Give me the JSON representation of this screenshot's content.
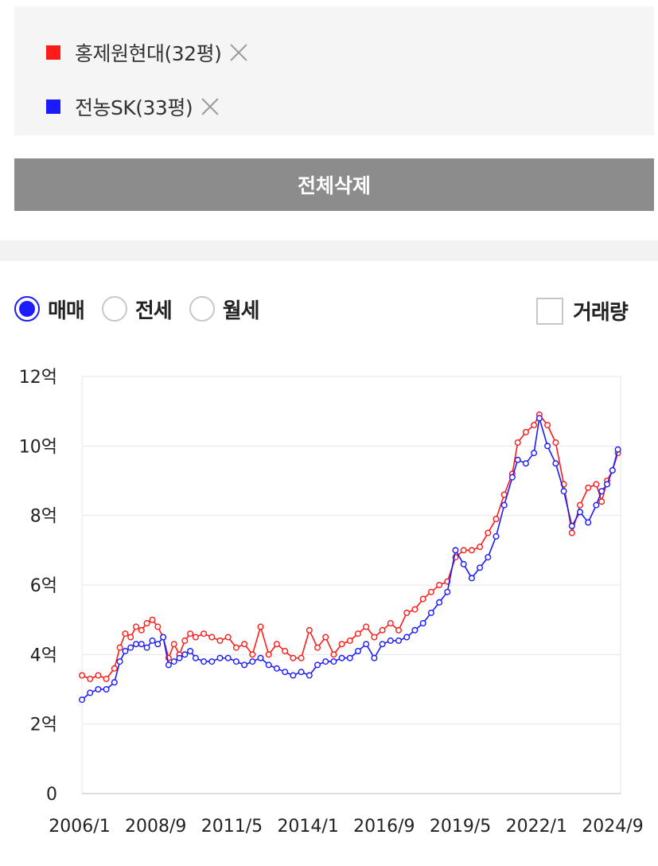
{
  "comparison": {
    "items": [
      {
        "label": "홍제원현대(32평)",
        "color": "#ff1a1a"
      },
      {
        "label": "전농SK(33평)",
        "color": "#1a1aff"
      }
    ]
  },
  "toolbar": {
    "clear_all_label": "전체삭제"
  },
  "trade_types": {
    "options": [
      "매매",
      "전세",
      "월세"
    ],
    "selected": "매매"
  },
  "volume_toggle": {
    "label": "거래량",
    "checked": false
  },
  "chart_data": {
    "type": "line",
    "y_tick_labels": [
      "0",
      "2억",
      "4억",
      "6억",
      "8억",
      "10억",
      "12억"
    ],
    "x_tick_labels": [
      "2006/1",
      "2008/9",
      "2011/5",
      "2014/1",
      "2016/9",
      "2019/5",
      "2022/1",
      "2024/9"
    ],
    "ylim": [
      0,
      12
    ],
    "y_unit": "억",
    "x_range_years": [
      2006.0,
      2025.9
    ],
    "grid": true,
    "markers": "hollow-circle",
    "series": [
      {
        "name": "홍제원현대(32평)",
        "color": "#ff1a1a",
        "points": [
          [
            2006.0,
            3.4
          ],
          [
            2006.3,
            3.3
          ],
          [
            2006.6,
            3.4
          ],
          [
            2006.9,
            3.3
          ],
          [
            2007.2,
            3.6
          ],
          [
            2007.4,
            4.2
          ],
          [
            2007.6,
            4.6
          ],
          [
            2007.8,
            4.5
          ],
          [
            2008.0,
            4.8
          ],
          [
            2008.2,
            4.7
          ],
          [
            2008.4,
            4.9
          ],
          [
            2008.6,
            5.0
          ],
          [
            2008.8,
            4.8
          ],
          [
            2009.0,
            4.5
          ],
          [
            2009.2,
            3.9
          ],
          [
            2009.4,
            4.3
          ],
          [
            2009.6,
            4.0
          ],
          [
            2009.8,
            4.4
          ],
          [
            2010.0,
            4.6
          ],
          [
            2010.2,
            4.5
          ],
          [
            2010.5,
            4.6
          ],
          [
            2010.8,
            4.5
          ],
          [
            2011.1,
            4.4
          ],
          [
            2011.4,
            4.5
          ],
          [
            2011.7,
            4.2
          ],
          [
            2012.0,
            4.3
          ],
          [
            2012.3,
            4.0
          ],
          [
            2012.6,
            4.8
          ],
          [
            2012.9,
            4.0
          ],
          [
            2013.2,
            4.3
          ],
          [
            2013.5,
            4.1
          ],
          [
            2013.8,
            3.9
          ],
          [
            2014.1,
            3.9
          ],
          [
            2014.4,
            4.7
          ],
          [
            2014.7,
            4.2
          ],
          [
            2015.0,
            4.5
          ],
          [
            2015.3,
            4.0
          ],
          [
            2015.6,
            4.3
          ],
          [
            2015.9,
            4.4
          ],
          [
            2016.2,
            4.6
          ],
          [
            2016.5,
            4.8
          ],
          [
            2016.8,
            4.5
          ],
          [
            2017.1,
            4.7
          ],
          [
            2017.4,
            4.9
          ],
          [
            2017.7,
            4.7
          ],
          [
            2018.0,
            5.2
          ],
          [
            2018.3,
            5.3
          ],
          [
            2018.6,
            5.6
          ],
          [
            2018.9,
            5.8
          ],
          [
            2019.2,
            6.0
          ],
          [
            2019.5,
            6.1
          ],
          [
            2019.8,
            6.8
          ],
          [
            2020.1,
            7.0
          ],
          [
            2020.4,
            7.0
          ],
          [
            2020.7,
            7.1
          ],
          [
            2021.0,
            7.5
          ],
          [
            2021.3,
            7.9
          ],
          [
            2021.6,
            8.6
          ],
          [
            2021.9,
            9.2
          ],
          [
            2022.1,
            10.1
          ],
          [
            2022.4,
            10.4
          ],
          [
            2022.7,
            10.6
          ],
          [
            2022.9,
            10.9
          ],
          [
            2023.2,
            10.6
          ],
          [
            2023.5,
            10.1
          ],
          [
            2023.8,
            8.9
          ],
          [
            2024.1,
            7.5
          ],
          [
            2024.4,
            8.3
          ],
          [
            2024.7,
            8.8
          ],
          [
            2025.0,
            8.9
          ],
          [
            2025.2,
            8.4
          ],
          [
            2025.4,
            9.0
          ],
          [
            2025.6,
            9.3
          ],
          [
            2025.8,
            9.8
          ]
        ]
      },
      {
        "name": "전농SK(33평)",
        "color": "#1a1aff",
        "points": [
          [
            2006.0,
            2.7
          ],
          [
            2006.3,
            2.9
          ],
          [
            2006.6,
            3.0
          ],
          [
            2006.9,
            3.0
          ],
          [
            2007.2,
            3.2
          ],
          [
            2007.4,
            3.8
          ],
          [
            2007.6,
            4.1
          ],
          [
            2007.8,
            4.2
          ],
          [
            2008.0,
            4.3
          ],
          [
            2008.2,
            4.3
          ],
          [
            2008.4,
            4.2
          ],
          [
            2008.6,
            4.4
          ],
          [
            2008.8,
            4.3
          ],
          [
            2009.0,
            4.5
          ],
          [
            2009.2,
            3.7
          ],
          [
            2009.4,
            3.8
          ],
          [
            2009.6,
            3.9
          ],
          [
            2009.8,
            4.0
          ],
          [
            2010.0,
            4.1
          ],
          [
            2010.2,
            3.9
          ],
          [
            2010.5,
            3.8
          ],
          [
            2010.8,
            3.8
          ],
          [
            2011.1,
            3.9
          ],
          [
            2011.4,
            3.9
          ],
          [
            2011.7,
            3.8
          ],
          [
            2012.0,
            3.7
          ],
          [
            2012.3,
            3.8
          ],
          [
            2012.6,
            3.9
          ],
          [
            2012.9,
            3.7
          ],
          [
            2013.2,
            3.6
          ],
          [
            2013.5,
            3.5
          ],
          [
            2013.8,
            3.4
          ],
          [
            2014.1,
            3.5
          ],
          [
            2014.4,
            3.4
          ],
          [
            2014.7,
            3.7
          ],
          [
            2015.0,
            3.8
          ],
          [
            2015.3,
            3.8
          ],
          [
            2015.6,
            3.9
          ],
          [
            2015.9,
            3.9
          ],
          [
            2016.2,
            4.1
          ],
          [
            2016.5,
            4.3
          ],
          [
            2016.8,
            3.9
          ],
          [
            2017.1,
            4.3
          ],
          [
            2017.4,
            4.4
          ],
          [
            2017.7,
            4.4
          ],
          [
            2018.0,
            4.5
          ],
          [
            2018.3,
            4.7
          ],
          [
            2018.6,
            4.9
          ],
          [
            2018.9,
            5.2
          ],
          [
            2019.2,
            5.5
          ],
          [
            2019.5,
            5.8
          ],
          [
            2019.8,
            7.0
          ],
          [
            2020.1,
            6.6
          ],
          [
            2020.4,
            6.2
          ],
          [
            2020.7,
            6.5
          ],
          [
            2021.0,
            6.8
          ],
          [
            2021.3,
            7.4
          ],
          [
            2021.6,
            8.3
          ],
          [
            2021.9,
            9.1
          ],
          [
            2022.1,
            9.6
          ],
          [
            2022.4,
            9.5
          ],
          [
            2022.7,
            9.8
          ],
          [
            2022.9,
            10.8
          ],
          [
            2023.2,
            10.0
          ],
          [
            2023.5,
            9.5
          ],
          [
            2023.8,
            8.7
          ],
          [
            2024.1,
            7.7
          ],
          [
            2024.4,
            8.1
          ],
          [
            2024.7,
            7.8
          ],
          [
            2025.0,
            8.3
          ],
          [
            2025.2,
            8.7
          ],
          [
            2025.4,
            8.9
          ],
          [
            2025.6,
            9.3
          ],
          [
            2025.8,
            9.9
          ]
        ]
      }
    ]
  }
}
